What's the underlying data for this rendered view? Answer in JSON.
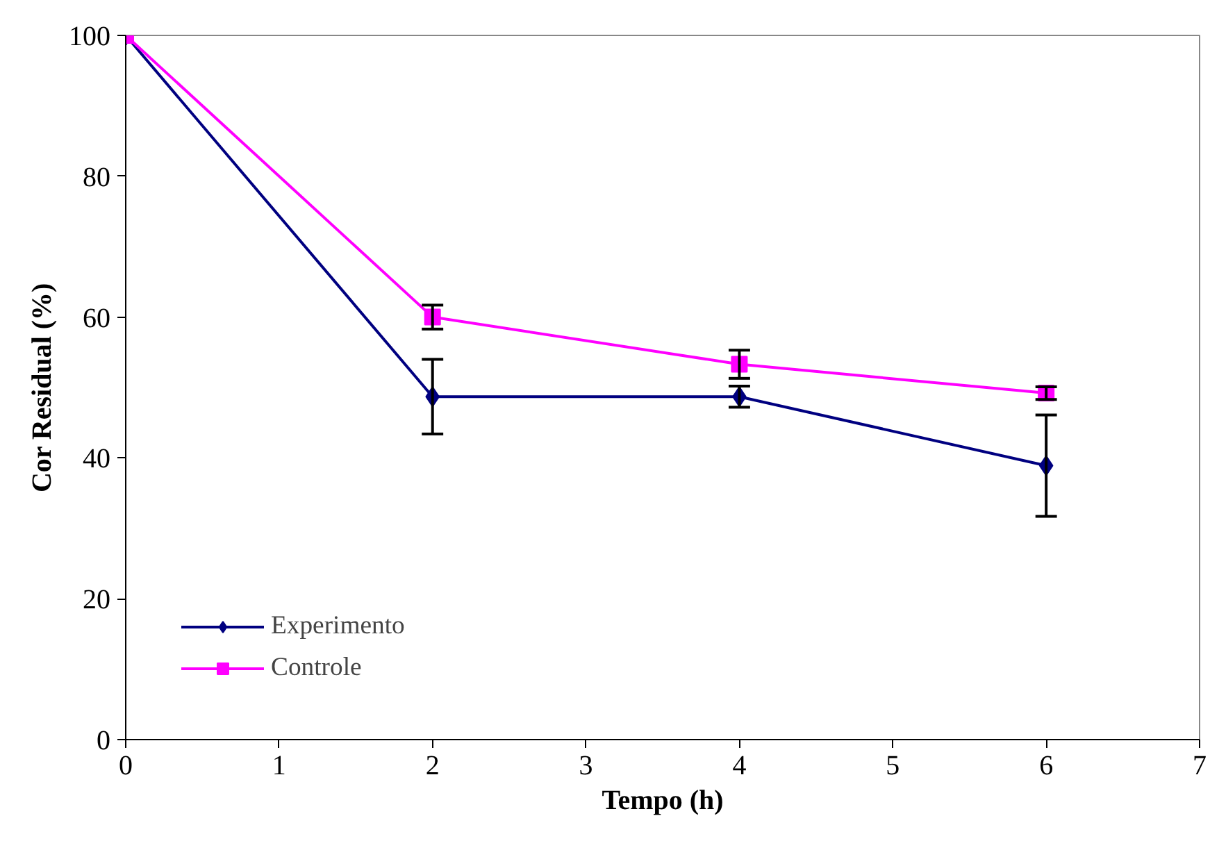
{
  "chart_data": {
    "type": "line",
    "xlabel": "Tempo (h)",
    "ylabel": "Cor Residual (%)",
    "x": [
      0,
      2,
      4,
      6
    ],
    "series": [
      {
        "name": "Experimento",
        "color": "#000080",
        "marker": "diamond",
        "values": [
          100,
          48.7,
          48.7,
          38.9
        ],
        "errors": [
          null,
          5.3,
          1.5,
          7.2
        ]
      },
      {
        "name": "Controle",
        "color": "#ff00ff",
        "marker": "square",
        "values": [
          100,
          60.0,
          53.3,
          49.2
        ],
        "errors": [
          null,
          1.7,
          2.0,
          0.9
        ]
      }
    ],
    "xlim": [
      0,
      7
    ],
    "xticks": [
      0,
      1,
      2,
      3,
      4,
      5,
      6,
      7
    ],
    "ylim": [
      0,
      100
    ],
    "yticks": [
      0,
      20,
      40,
      60,
      80,
      100
    ],
    "grid": false,
    "legend": "bottom left",
    "line_style": "solid"
  }
}
